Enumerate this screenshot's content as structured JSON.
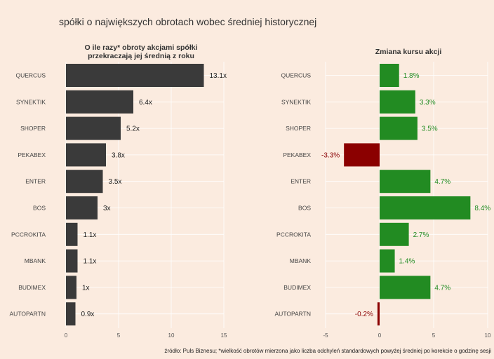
{
  "title": "spółki o największych obrotach wobec średniej historycznej",
  "source": "źródło: Puls Biznesu; *wielkość obrotów mierzona jako liczba odchyleń standardowych powyżej średniej po korekcie o godzinę sesji",
  "colors": {
    "background": "#fbebdf",
    "left_bar": "#3a3a3a",
    "positive": "#228b22",
    "negative": "#8b0000",
    "label_dark": "#222222"
  },
  "chart_data": [
    {
      "type": "bar",
      "orientation": "horizontal",
      "title_lines": [
        "O ile razy* obroty akcjami spółki",
        "przekraczają jej średnią z roku"
      ],
      "categories": [
        "QUERCUS",
        "SYNEKTIK",
        "SHOPER",
        "PEKABEX",
        "ENTER",
        "BOS",
        "PCCROKITA",
        "MBANK",
        "BUDIMEX",
        "AUTOPARTN"
      ],
      "values": [
        13.1,
        6.4,
        5.2,
        3.8,
        3.5,
        3.0,
        1.1,
        1.1,
        1.0,
        0.9
      ],
      "labels": [
        "13.1x",
        "6.4x",
        "5.2x",
        "3.8x",
        "3.5x",
        "3x",
        "1.1x",
        "1.1x",
        "1x",
        "0.9x"
      ],
      "xlim": [
        0,
        15
      ],
      "ticks": [
        0,
        5,
        10,
        15
      ],
      "tick_labels": [
        "0",
        "5",
        "10",
        "15"
      ]
    },
    {
      "type": "bar",
      "orientation": "horizontal",
      "title_lines": [
        "Zmiana kursu akcji"
      ],
      "categories": [
        "QUERCUS",
        "SYNEKTIK",
        "SHOPER",
        "PEKABEX",
        "ENTER",
        "BOS",
        "PCCROKITA",
        "MBANK",
        "BUDIMEX",
        "AUTOPARTN"
      ],
      "values": [
        1.8,
        3.3,
        3.5,
        -3.3,
        4.7,
        8.4,
        2.7,
        1.4,
        4.7,
        -0.2
      ],
      "labels": [
        "1.8%",
        "3.3%",
        "3.5%",
        "-3.3%",
        "4.7%",
        "8.4%",
        "2.7%",
        "1.4%",
        "4.7%",
        "-0.2%"
      ],
      "xlim": [
        -5,
        10
      ],
      "ticks": [
        -5,
        0,
        5,
        10
      ],
      "tick_labels": [
        "-5",
        "0",
        "5",
        "10"
      ]
    }
  ]
}
